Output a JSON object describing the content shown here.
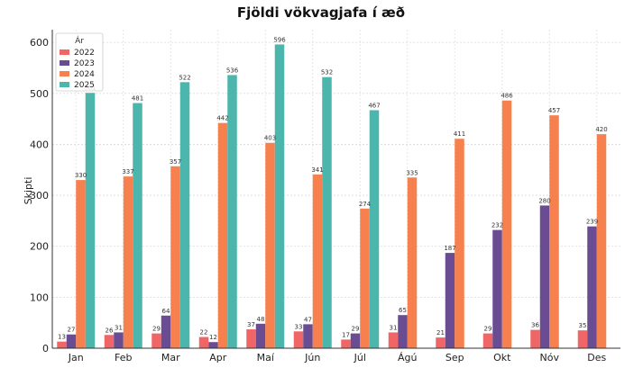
{
  "chart_data": {
    "type": "bar",
    "title": "Fjöldi vökvagjafa í æð",
    "xlabel": "",
    "ylabel": "Skipti",
    "ylim": [
      0,
      625
    ],
    "yticks": [
      0,
      100,
      200,
      300,
      400,
      500,
      600
    ],
    "grid": true,
    "legend_title": "Ár",
    "legend_position": "top-left",
    "categories": [
      "Jan",
      "Feb",
      "Mar",
      "Apr",
      "Maí",
      "Jún",
      "Júl",
      "Ágú",
      "Sep",
      "Okt",
      "Nóv",
      "Des"
    ],
    "series": [
      {
        "name": "2022",
        "color": "#f06565",
        "values": [
          13,
          26,
          29,
          22,
          37,
          33,
          17,
          31,
          21,
          29,
          36,
          35
        ]
      },
      {
        "name": "2023",
        "color": "#6a4c93",
        "values": [
          27,
          31,
          64,
          12,
          48,
          47,
          29,
          65,
          187,
          232,
          280,
          239
        ]
      },
      {
        "name": "2024",
        "color": "#f7804f",
        "values": [
          330,
          337,
          357,
          442,
          403,
          341,
          274,
          335,
          411,
          486,
          457,
          420
        ]
      },
      {
        "name": "2025",
        "color": "#4db6ac",
        "values": [
          501,
          481,
          522,
          536,
          596,
          532,
          467,
          null,
          null,
          null,
          null,
          null
        ]
      }
    ]
  }
}
